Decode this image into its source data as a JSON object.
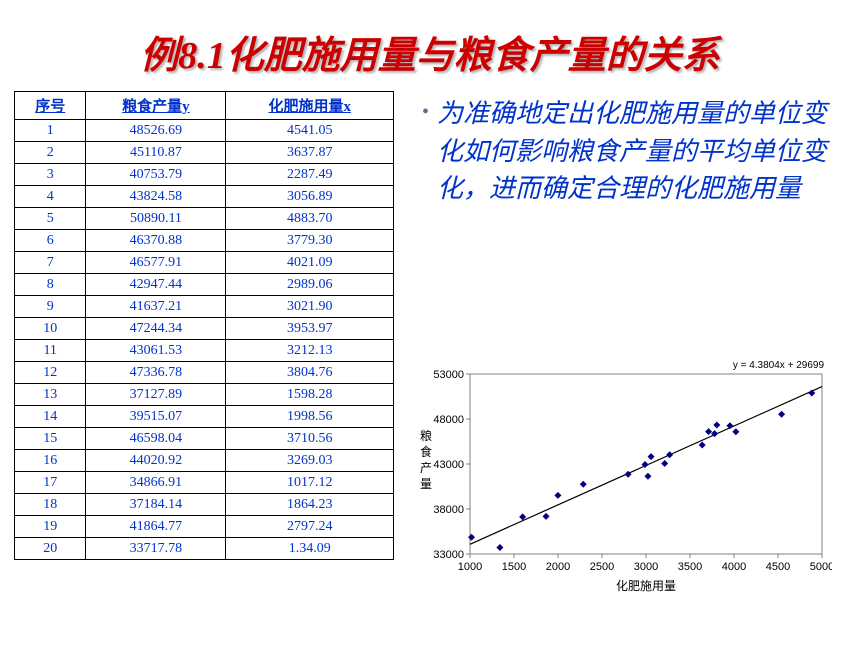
{
  "title": "例8.1化肥施用量与粮食产量的关系",
  "table": {
    "headers": [
      "序号",
      "粮食产量y",
      "化肥施用量x"
    ],
    "rows": [
      [
        "1",
        "48526.69",
        "4541.05"
      ],
      [
        "2",
        "45110.87",
        "3637.87"
      ],
      [
        "3",
        "40753.79",
        "2287.49"
      ],
      [
        "4",
        "43824.58",
        "3056.89"
      ],
      [
        "5",
        "50890.11",
        "4883.70"
      ],
      [
        "6",
        "46370.88",
        "3779.30"
      ],
      [
        "7",
        "46577.91",
        "4021.09"
      ],
      [
        "8",
        "42947.44",
        "2989.06"
      ],
      [
        "9",
        "41637.21",
        "3021.90"
      ],
      [
        "10",
        "47244.34",
        "3953.97"
      ],
      [
        "11",
        "43061.53",
        "3212.13"
      ],
      [
        "12",
        "47336.78",
        "3804.76"
      ],
      [
        "13",
        "37127.89",
        "1598.28"
      ],
      [
        "14",
        "39515.07",
        "1998.56"
      ],
      [
        "15",
        "46598.04",
        "3710.56"
      ],
      [
        "16",
        "44020.92",
        "3269.03"
      ],
      [
        "17",
        "34866.91",
        "1017.12"
      ],
      [
        "18",
        "37184.14",
        "1864.23"
      ],
      [
        "19",
        "41864.77",
        "2797.24"
      ],
      [
        "20",
        "33717.78",
        "1.34.09"
      ]
    ]
  },
  "description": "为准确地定出化肥施用量的单位变化如何影响粮食产量的平均单位变化，进而确定合理的化肥施用量",
  "chart": {
    "type": "scatter",
    "equation": "y = 4.3804x + 29699",
    "xlabel": "化肥施用量",
    "ylabel": "粮食产量",
    "xlim": [
      1000,
      5000
    ],
    "ylim": [
      33000,
      53000
    ],
    "xtick_step": 500,
    "ytick_step": 5000,
    "xticks": [
      1000,
      1500,
      2000,
      2500,
      3000,
      3500,
      4000,
      4500,
      5000
    ],
    "yticks": [
      33000,
      38000,
      43000,
      48000,
      53000
    ],
    "marker_color": "#000080",
    "line_color": "#000000",
    "border_color": "#808080",
    "background_color": "#ffffff",
    "text_color": "#000000",
    "axis_fontsize": 11,
    "label_fontsize": 12,
    "points": [
      {
        "x": 4541,
        "y": 48527
      },
      {
        "x": 3638,
        "y": 45111
      },
      {
        "x": 2287,
        "y": 40754
      },
      {
        "x": 3057,
        "y": 43825
      },
      {
        "x": 4884,
        "y": 50890
      },
      {
        "x": 3779,
        "y": 46371
      },
      {
        "x": 4021,
        "y": 46578
      },
      {
        "x": 2989,
        "y": 42947
      },
      {
        "x": 3022,
        "y": 41637
      },
      {
        "x": 3954,
        "y": 47244
      },
      {
        "x": 3212,
        "y": 43062
      },
      {
        "x": 3805,
        "y": 47337
      },
      {
        "x": 1598,
        "y": 37128
      },
      {
        "x": 1999,
        "y": 39515
      },
      {
        "x": 3711,
        "y": 46598
      },
      {
        "x": 3269,
        "y": 44021
      },
      {
        "x": 1017,
        "y": 34867
      },
      {
        "x": 1864,
        "y": 37184
      },
      {
        "x": 2797,
        "y": 41865
      },
      {
        "x": 1340,
        "y": 33718
      }
    ],
    "regression": {
      "slope": 4.3804,
      "intercept": 29699
    }
  }
}
